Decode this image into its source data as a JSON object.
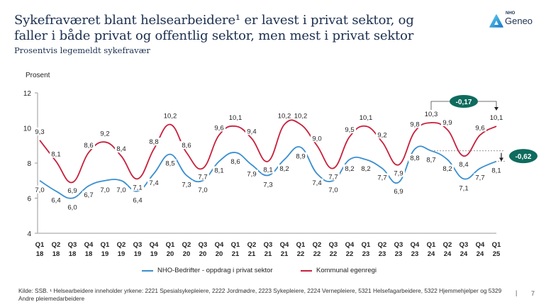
{
  "header": {
    "title": "Sykefraværet blant helsearbeidere¹ er lavest i privat sektor, og faller i både privat og offentlig sektor, men mest i privat sektor",
    "subtitle": "Prosentvis legemeldt sykefravær"
  },
  "logo": {
    "small": "NHO",
    "name": "Geneo",
    "icon": "geneo-logo-icon"
  },
  "colors": {
    "blue": "#3a8fd0",
    "red": "#c8203c",
    "badge": "#0e6b5e",
    "text": "#1b2f4f"
  },
  "chart_data": {
    "type": "line",
    "title": "Prosentvis legemeldt sykefravær",
    "ylabel": "Prosent",
    "xlabel": "",
    "ylim": [
      4,
      12
    ],
    "yticks": [
      4,
      6,
      8,
      10,
      12
    ],
    "grid": false,
    "legend_position": "bottom",
    "x_quarters": [
      "Q1",
      "Q2",
      "Q3",
      "Q4",
      "Q1",
      "Q2",
      "Q3",
      "Q4",
      "Q1",
      "Q2",
      "Q3",
      "Q4",
      "Q1",
      "Q2",
      "Q3",
      "Q4",
      "Q1",
      "Q2",
      "Q3",
      "Q4",
      "Q1",
      "Q2",
      "Q3",
      "Q4",
      "Q1",
      "Q2",
      "Q3",
      "Q4",
      "Q1"
    ],
    "x_years": [
      "18",
      "18",
      "18",
      "18",
      "19",
      "19",
      "19",
      "19",
      "20",
      "20",
      "20",
      "20",
      "21",
      "21",
      "21",
      "21",
      "22",
      "22",
      "22",
      "22",
      "23",
      "23",
      "23",
      "23",
      "24",
      "24",
      "24",
      "24",
      "25"
    ],
    "series": [
      {
        "name": "NHO-Bedrifter - oppdrag i privat sektor",
        "color": "#3a8fd0",
        "values": [
          7.0,
          6.4,
          6.0,
          6.7,
          7.0,
          7.0,
          6.4,
          7.4,
          8.5,
          7.3,
          7.0,
          8.1,
          8.6,
          7.9,
          7.3,
          8.2,
          8.9,
          7.4,
          7.0,
          8.2,
          8.2,
          7.7,
          6.9,
          8.8,
          8.7,
          8.2,
          7.1,
          7.7,
          8.1
        ],
        "labels": [
          "7,0",
          "6,4",
          "6,0",
          "6,7",
          "7,0",
          "7,0",
          "6,4",
          "7,4",
          "8,5",
          "7,3",
          "7,0",
          "8,1",
          "8,6",
          "7,9",
          "7,3",
          "8,2",
          "8,9",
          "7,4",
          "7,0",
          "8,2",
          "8,2",
          "7,7",
          "6,9",
          "8,8",
          "8,7",
          "8,2",
          "7,1",
          "7,7",
          "8,1"
        ]
      },
      {
        "name": "Kommunal egenregi",
        "color": "#c8203c",
        "values": [
          9.3,
          8.1,
          6.9,
          8.6,
          9.2,
          8.4,
          7.1,
          8.8,
          10.2,
          8.6,
          7.7,
          9.6,
          10.1,
          9.4,
          8.1,
          10.2,
          10.2,
          9.0,
          7.7,
          9.5,
          10.1,
          9.2,
          7.9,
          9.8,
          10.3,
          9.9,
          8.4,
          9.6,
          10.1
        ],
        "labels": [
          "9,3",
          "8,1",
          "6,9",
          "8,6",
          "9,2",
          "8,4",
          "7,1",
          "8,8",
          "10,2",
          "8,6",
          "7,7",
          "9,6",
          "10,1",
          "9,4",
          "8,1",
          "10,2",
          "10,2",
          "9,0",
          "7,7",
          "9,5",
          "10,1",
          "9,2",
          "7,9",
          "9,8",
          "10,3",
          "9,9",
          "8,4",
          "9,6",
          "10,1"
        ]
      }
    ],
    "annotations": [
      {
        "text": "-0,17",
        "from": "Q1 24",
        "to": "Q1 25",
        "series": "Kommunal egenregi"
      },
      {
        "text": "-0,62",
        "from": "Q1 24",
        "to": "Q1 25",
        "series": "NHO-Bedrifter - oppdrag i privat sektor"
      }
    ]
  },
  "footer": {
    "source": "Kilde: SSB. ¹  Helsearbeidere inneholder yrkene: 2221 Spesialsykepleiere, 2222 Jordmødre, 2223 Sykepleiere, 2224 Vernepleiere, 5321 Helsefagarbeidere, 5322 Hjemmehjelper og 5329 Andre pleiemedarbeidere",
    "separator": "|",
    "page_number": "7"
  }
}
